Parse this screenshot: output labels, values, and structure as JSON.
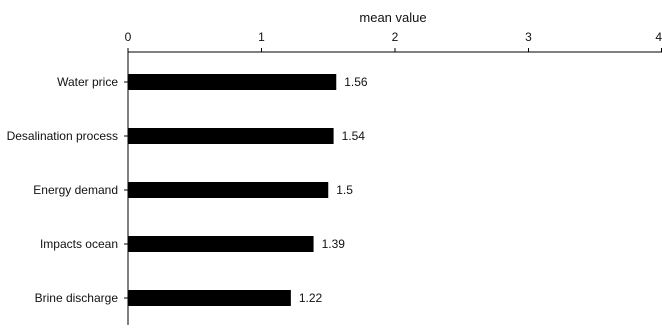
{
  "chart_data": {
    "type": "bar",
    "orientation": "horizontal",
    "xlabel": "mean value",
    "xlabel_position": "top",
    "xlim": [
      0,
      4
    ],
    "xticks": [
      "0",
      "1",
      "2",
      "3",
      "4"
    ],
    "grid": false,
    "legend": "none",
    "categories": [
      "Water price",
      "Desalination process",
      "Energy demand",
      "Impacts ocean",
      "Brine discharge"
    ],
    "values": [
      1.56,
      1.54,
      1.5,
      1.39,
      1.22
    ],
    "data_labels": [
      "1.56",
      "1.54",
      "1.5",
      "1.39",
      "1.22"
    ],
    "bar_color": "#000000",
    "axis_color": "#000000"
  }
}
